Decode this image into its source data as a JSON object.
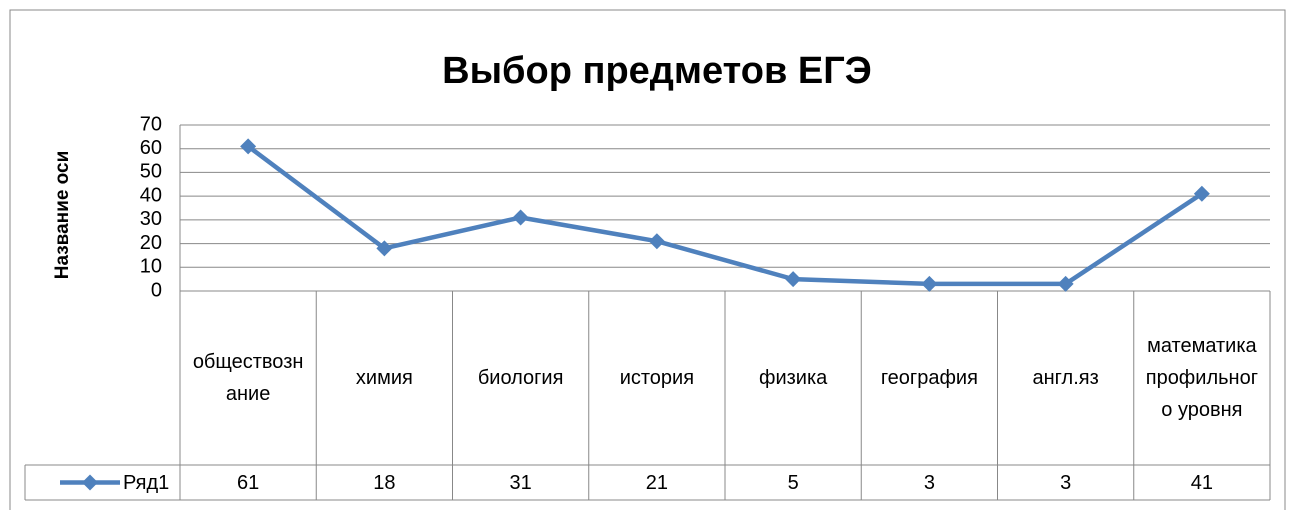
{
  "chart_data": {
    "type": "line",
    "title": "Выбор предметов ЕГЭ",
    "y_label": "Название оси",
    "categories": [
      "обществознание",
      "химия",
      "биология",
      "история",
      "физика",
      "география",
      "англ.яз",
      "математика профильного уровня"
    ],
    "series": [
      {
        "name": "Ряд1",
        "color": "#4f81bd",
        "values": [
          61,
          18,
          31,
          21,
          5,
          3,
          3,
          41
        ]
      }
    ],
    "ylim": [
      0,
      70
    ],
    "yticks": [
      0,
      10,
      20,
      30,
      40,
      50,
      60,
      70
    ],
    "grid": true,
    "data_table": true
  }
}
